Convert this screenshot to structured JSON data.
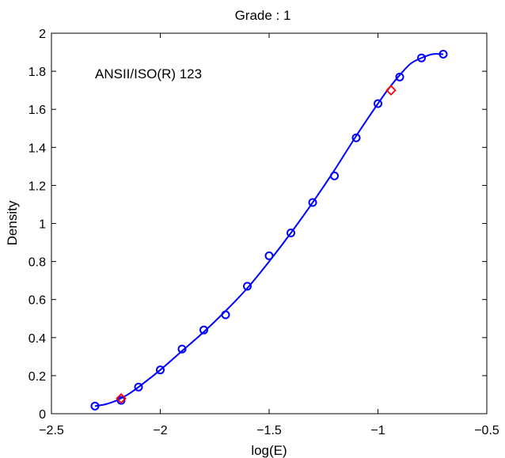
{
  "chart_data": {
    "type": "line",
    "title": "Grade : 1",
    "xlabel": "log(E)",
    "ylabel": "Density",
    "xlim": [
      -2.5,
      -0.5
    ],
    "ylim": [
      0,
      2
    ],
    "xticks": [
      -2.5,
      -2,
      -1.5,
      -1,
      -0.5
    ],
    "xtick_labels": [
      "−2.5",
      "−2",
      "−1.5",
      "−1",
      "−0.5"
    ],
    "yticks": [
      0,
      0.2,
      0.4,
      0.6,
      0.8,
      1,
      1.2,
      1.4,
      1.6,
      1.8,
      2
    ],
    "ytick_labels": [
      "0",
      "0.2",
      "0.4",
      "0.6",
      "0.8",
      "1",
      "1.2",
      "1.4",
      "1.6",
      "1.8",
      "2"
    ],
    "grid": false,
    "annotation": "ANSII/ISO(R) 123",
    "series": [
      {
        "kind": "points",
        "marker": "circle",
        "color": "#0000ff",
        "x": [
          -2.3,
          -2.18,
          -2.1,
          -2.0,
          -1.9,
          -1.8,
          -1.7,
          -1.6,
          -1.5,
          -1.4,
          -1.3,
          -1.2,
          -1.1,
          -1.0,
          -0.9,
          -0.8,
          -0.7
        ],
        "y": [
          0.04,
          0.07,
          0.14,
          0.23,
          0.34,
          0.44,
          0.52,
          0.67,
          0.83,
          0.95,
          1.11,
          1.25,
          1.45,
          1.63,
          1.77,
          1.87,
          1.89
        ]
      },
      {
        "kind": "fit-curve",
        "color": "#0000ff",
        "x": [
          -2.3,
          -2.25,
          -2.2,
          -2.15,
          -2.1,
          -2.0,
          -1.9,
          -1.8,
          -1.7,
          -1.6,
          -1.5,
          -1.4,
          -1.3,
          -1.2,
          -1.1,
          -1.0,
          -0.95,
          -0.9,
          -0.85,
          -0.8,
          -0.75,
          -0.7
        ],
        "y": [
          0.04,
          0.05,
          0.07,
          0.1,
          0.14,
          0.23,
          0.33,
          0.43,
          0.54,
          0.66,
          0.8,
          0.95,
          1.11,
          1.28,
          1.46,
          1.63,
          1.71,
          1.78,
          1.84,
          1.87,
          1.89,
          1.89
        ]
      },
      {
        "kind": "points",
        "marker": "diamond",
        "color": "#ff0000",
        "x": [
          -2.18,
          -0.94
        ],
        "y": [
          0.08,
          1.7
        ]
      }
    ]
  }
}
